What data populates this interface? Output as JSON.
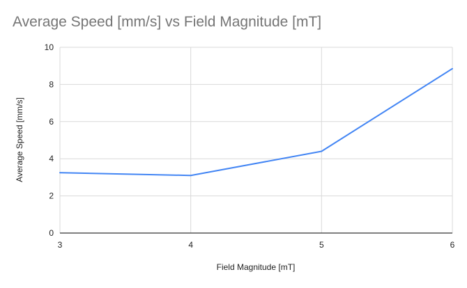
{
  "chart_data": {
    "type": "line",
    "title": "Average Speed [mm/s] vs Field Magnitude [mT]",
    "xlabel": "Field Magnitude [mT]",
    "ylabel": "Average Speed [mm/s]",
    "x": [
      3,
      4,
      5,
      6
    ],
    "x_ticks": [
      "3",
      "4",
      "5",
      "6"
    ],
    "y_ticks": [
      "0",
      "2",
      "4",
      "6",
      "8",
      "10"
    ],
    "xlim": [
      3,
      6
    ],
    "ylim": [
      0,
      10
    ],
    "grid": true,
    "legend": "none",
    "series": [
      {
        "values": [
          3.25,
          3.1,
          4.4,
          8.85
        ],
        "color": "#4285f4"
      }
    ]
  }
}
